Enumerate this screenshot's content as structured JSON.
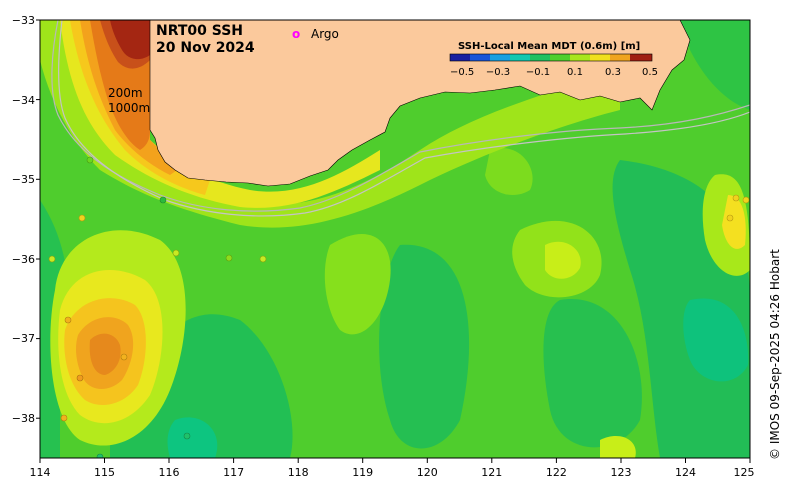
{
  "title": "NRT00 SSH",
  "date": "20 Nov 2024",
  "legend": {
    "argo_symbol": "o",
    "argo_label": "Argo",
    "argo_color": "#ff00ff"
  },
  "colorbar": {
    "title": "SSH-Local Mean MDT (0.6m) [m]",
    "ticks": [
      "−0.5",
      "−0.3",
      "−0.1",
      "0.1",
      "0.3",
      "0.5"
    ]
  },
  "contours": {
    "c200": "200m",
    "c1000": "1000m"
  },
  "axes": {
    "x_ticks": [
      "114",
      "115",
      "116",
      "117",
      "118",
      "119",
      "120",
      "121",
      "122",
      "123",
      "124",
      "125"
    ],
    "y_ticks": [
      "−33",
      "−34",
      "−35",
      "−36",
      "−37",
      "−38"
    ],
    "xlim": [
      114,
      125
    ],
    "ylim": [
      -38.5,
      -33
    ]
  },
  "credit": "© IMOS 09-Sep-2025 04:26 Hobart",
  "colors": {
    "land": "#fbc99c",
    "sea_base": "#4cce2c"
  }
}
